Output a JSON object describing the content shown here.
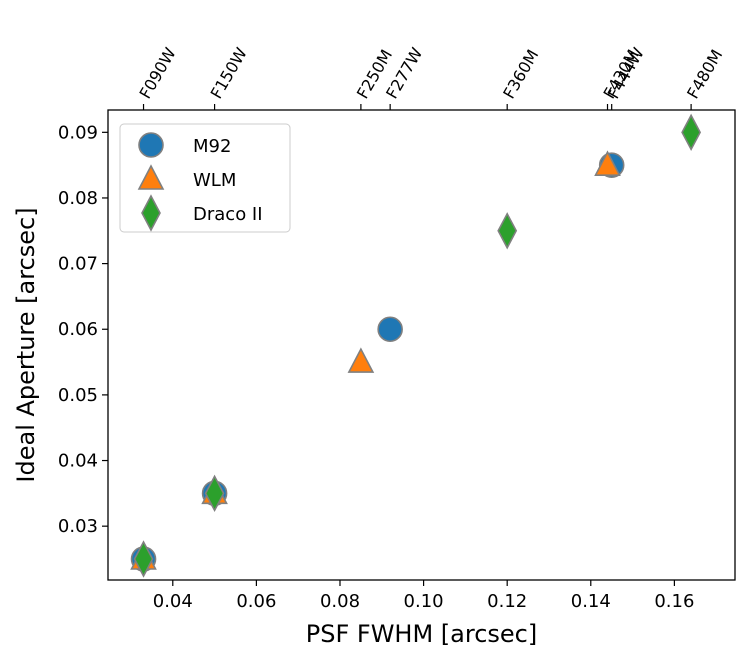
{
  "chart_data": {
    "type": "scatter",
    "xlabel": "PSF FWHM [arcsec]",
    "ylabel": "Ideal Aperture [arcsec]",
    "xlim": [
      0.0245,
      0.1745
    ],
    "ylim": [
      0.0218,
      0.0934
    ],
    "xticks": [
      0.04,
      0.06,
      0.08,
      0.1,
      0.12,
      0.14,
      0.16
    ],
    "xtick_labels": [
      "0.04",
      "0.06",
      "0.08",
      "0.10",
      "0.12",
      "0.14",
      "0.16"
    ],
    "yticks": [
      0.03,
      0.04,
      0.05,
      0.06,
      0.07,
      0.08,
      0.09
    ],
    "ytick_labels": [
      "0.03",
      "0.04",
      "0.05",
      "0.06",
      "0.07",
      "0.08",
      "0.09"
    ],
    "top_axis": {
      "positions": [
        0.033,
        0.05,
        0.085,
        0.092,
        0.12,
        0.144,
        0.145,
        0.164
      ],
      "labels": [
        "F090W",
        "F150W",
        "F250M",
        "F277W",
        "F360M",
        "F430M",
        "F444W",
        "F480M"
      ]
    },
    "grid": false,
    "legend_position": "top-left",
    "series": [
      {
        "name": "M92",
        "marker": "circle",
        "color": "#1f77b4",
        "x": [
          0.033,
          0.05,
          0.092,
          0.145
        ],
        "y": [
          0.025,
          0.035,
          0.06,
          0.085
        ]
      },
      {
        "name": "WLM",
        "marker": "triangle",
        "color": "#ff7f0e",
        "x": [
          0.033,
          0.05,
          0.085,
          0.144
        ],
        "y": [
          0.025,
          0.035,
          0.055,
          0.085
        ]
      },
      {
        "name": "Draco II",
        "marker": "diamond",
        "color": "#2ca02c",
        "x": [
          0.033,
          0.05,
          0.12,
          0.164
        ],
        "y": [
          0.025,
          0.035,
          0.075,
          0.09
        ]
      }
    ],
    "marker_edge_color": "#808080"
  }
}
